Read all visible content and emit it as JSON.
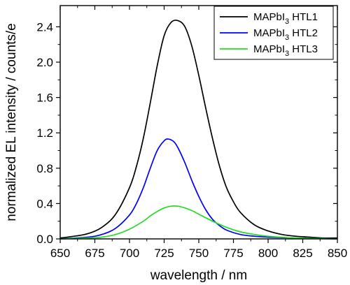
{
  "chart_data": {
    "type": "line",
    "xlabel": "wavelength / nm",
    "ylabel": "normalized EL intensity / counts/e",
    "xlim": [
      650,
      850
    ],
    "ylim": [
      0,
      2.64
    ],
    "xticks": [
      650,
      675,
      700,
      725,
      750,
      775,
      800,
      825,
      850
    ],
    "yticks": [
      0.0,
      0.4,
      0.8,
      1.2,
      1.6,
      2.0,
      2.4
    ],
    "xtick_labels": [
      "650",
      "675",
      "700",
      "725",
      "750",
      "775",
      "800",
      "825",
      "850"
    ],
    "ytick_labels": [
      "0.0",
      "0.4",
      "0.8",
      "1.2",
      "1.6",
      "2.0",
      "2.4"
    ],
    "grid": false,
    "legend_position": "top-right",
    "series": [
      {
        "name": "MAPbI3 HTL1",
        "label_main": "MAPbI",
        "label_sub": "3",
        "label_suffix": " HTL1",
        "color": "#000000",
        "x": [
          650,
          660,
          670,
          680,
          690,
          700,
          705,
          710,
          715,
          720,
          725,
          730,
          735,
          740,
          745,
          750,
          755,
          760,
          765,
          770,
          775,
          780,
          790,
          800,
          810,
          820,
          830,
          840,
          850
        ],
        "y": [
          0.01,
          0.03,
          0.06,
          0.13,
          0.28,
          0.58,
          0.82,
          1.14,
          1.54,
          1.96,
          2.3,
          2.45,
          2.47,
          2.4,
          2.18,
          1.85,
          1.48,
          1.13,
          0.82,
          0.58,
          0.42,
          0.3,
          0.16,
          0.09,
          0.05,
          0.03,
          0.02,
          0.01,
          0.01
        ]
      },
      {
        "name": "MAPbI3 HTL2",
        "label_main": "MAPbI",
        "label_sub": "3",
        "label_suffix": " HTL2",
        "color": "#0000ff",
        "x": [
          650,
          670,
          680,
          690,
          700,
          705,
          710,
          715,
          720,
          725,
          728,
          732,
          735,
          740,
          745,
          750,
          755,
          760,
          765,
          770,
          780,
          790,
          800,
          820,
          850
        ],
        "y": [
          0.0,
          0.02,
          0.05,
          0.12,
          0.27,
          0.4,
          0.58,
          0.8,
          1.0,
          1.11,
          1.13,
          1.1,
          1.03,
          0.86,
          0.66,
          0.48,
          0.33,
          0.22,
          0.15,
          0.1,
          0.05,
          0.03,
          0.02,
          0.01,
          0.0
        ]
      },
      {
        "name": "MAPbI3 HTL3",
        "label_main": "MAPbI",
        "label_sub": "3",
        "label_suffix": " HTL3",
        "color": "#22dd22",
        "x": [
          650,
          670,
          680,
          690,
          700,
          710,
          715,
          720,
          725,
          730,
          735,
          740,
          745,
          750,
          760,
          770,
          780,
          790,
          800,
          820,
          850
        ],
        "y": [
          0.0,
          0.01,
          0.02,
          0.05,
          0.11,
          0.2,
          0.26,
          0.31,
          0.35,
          0.37,
          0.37,
          0.35,
          0.32,
          0.28,
          0.2,
          0.13,
          0.08,
          0.05,
          0.03,
          0.01,
          0.0
        ]
      }
    ]
  }
}
